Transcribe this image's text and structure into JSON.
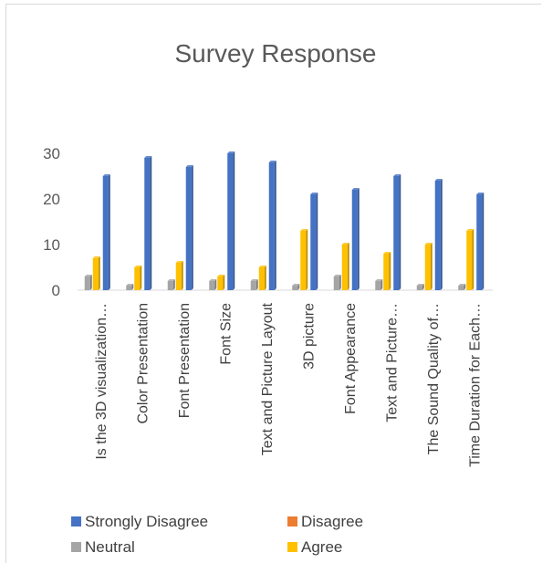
{
  "chart_data": {
    "type": "bar",
    "title": "Survey Response",
    "xlabel": "",
    "ylabel": "",
    "ylim": [
      0,
      30
    ],
    "yticks": [
      0,
      10,
      20,
      30
    ],
    "grid": false,
    "legend_position": "bottom",
    "categories": [
      "Is the 3D visualization…",
      "Color Presentation",
      "Font Presentation",
      "Font Size",
      "Text and Picture Layout",
      "3D picture",
      "Font Appearance",
      "Text and Picture…",
      "The Sound Quality of…",
      "Time Duration for Each…"
    ],
    "series": [
      {
        "name": "Strongly Disagree",
        "color": "#4472c4",
        "values": [
          25,
          29,
          27,
          30,
          28,
          21,
          22,
          25,
          24,
          21
        ]
      },
      {
        "name": "Disagree",
        "color": "#ed7d31",
        "values": [
          0,
          0,
          0,
          0,
          0,
          0,
          0,
          0,
          0,
          0
        ]
      },
      {
        "name": "Neutral",
        "color": "#a5a5a5",
        "values": [
          3,
          1,
          2,
          2,
          2,
          1,
          3,
          2,
          1,
          1
        ]
      },
      {
        "name": "Agree",
        "color": "#ffc000",
        "values": [
          7,
          5,
          6,
          3,
          5,
          13,
          10,
          8,
          10,
          13
        ]
      }
    ]
  }
}
